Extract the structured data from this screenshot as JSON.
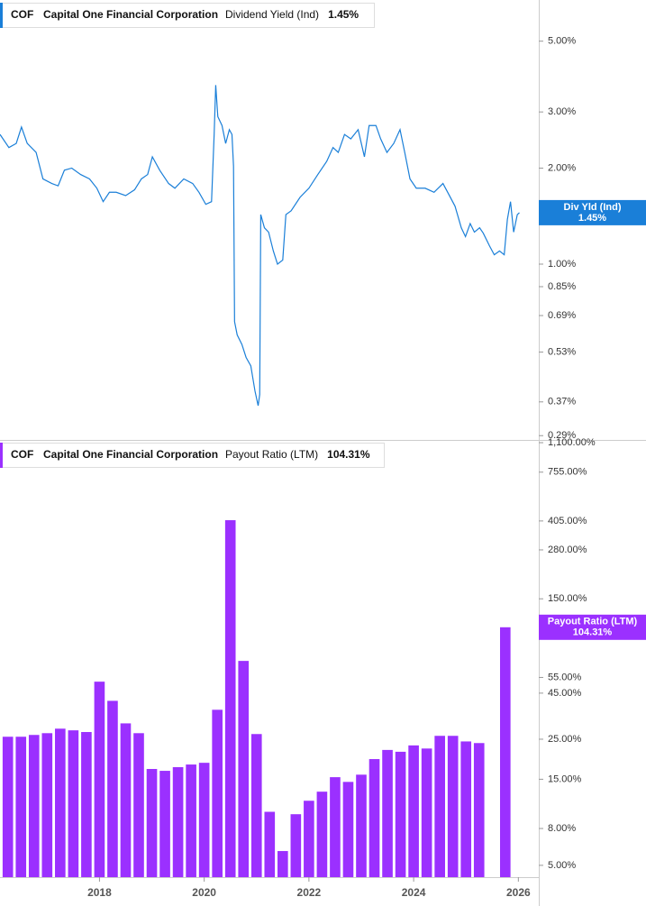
{
  "ticker": "COF",
  "company": "Capital One Financial Corporation",
  "chart_data": [
    {
      "type": "line",
      "log": true,
      "xlim": [
        2016.1,
        2026.39
      ],
      "ylim": [
        0.283,
        6.73
      ],
      "yticks": [
        {
          "value": 5,
          "label": "5.00%"
        },
        {
          "value": 3,
          "label": "3.00%"
        },
        {
          "value": 2,
          "label": "2.00%"
        },
        {
          "value": 1,
          "label": "1.00%"
        },
        {
          "value": 0.85,
          "label": "0.85%"
        },
        {
          "value": 0.69,
          "label": "0.69%"
        },
        {
          "value": 0.53,
          "label": "0.53%"
        },
        {
          "value": 0.37,
          "label": "0.37%"
        },
        {
          "value": 0.29,
          "label": "0.29%"
        }
      ],
      "x": [
        2016.1,
        2016.27,
        2016.41,
        2016.51,
        2016.62,
        2016.79,
        2016.92,
        2017.09,
        2017.21,
        2017.33,
        2017.47,
        2017.64,
        2017.81,
        2017.95,
        2018.07,
        2018.19,
        2018.32,
        2018.5,
        2018.67,
        2018.8,
        2018.92,
        2019.01,
        2019.15,
        2019.32,
        2019.44,
        2019.61,
        2019.78,
        2019.9,
        2020.03,
        2020.14,
        2020.19,
        2020.22,
        2020.26,
        2020.34,
        2020.41,
        2020.48,
        2020.53,
        2020.56,
        2020.58,
        2020.63,
        2020.72,
        2020.8,
        2020.89,
        2020.97,
        2021.03,
        2021.06,
        2021.08,
        2021.15,
        2021.23,
        2021.32,
        2021.4,
        2021.5,
        2021.56,
        2021.66,
        2021.83,
        2022.0,
        2022.17,
        2022.34,
        2022.46,
        2022.56,
        2022.68,
        2022.8,
        2022.94,
        2023.06,
        2023.15,
        2023.28,
        2023.37,
        2023.49,
        2023.62,
        2023.74,
        2023.83,
        2023.93,
        2024.05,
        2024.22,
        2024.39,
        2024.56,
        2024.65,
        2024.79,
        2024.91,
        2024.99,
        2025.08,
        2025.16,
        2025.26,
        2025.33,
        2025.45,
        2025.54,
        2025.64,
        2025.73,
        2025.79,
        2025.85,
        2025.91,
        2025.98,
        2026.02
      ],
      "series": [
        {
          "name": "Dividend Yield (Ind)",
          "color": "#1a7fd8",
          "values": [
            2.55,
            2.32,
            2.39,
            2.69,
            2.39,
            2.24,
            1.85,
            1.79,
            1.76,
            1.97,
            2.0,
            1.91,
            1.85,
            1.73,
            1.57,
            1.68,
            1.68,
            1.64,
            1.71,
            1.85,
            1.91,
            2.17,
            1.97,
            1.79,
            1.73,
            1.85,
            1.79,
            1.68,
            1.54,
            1.57,
            2.55,
            3.64,
            2.9,
            2.72,
            2.39,
            2.64,
            2.55,
            2.03,
            0.66,
            0.6,
            0.56,
            0.51,
            0.48,
            0.4,
            0.36,
            0.39,
            1.43,
            1.3,
            1.26,
            1.1,
            1.0,
            1.03,
            1.43,
            1.47,
            1.62,
            1.73,
            1.91,
            2.1,
            2.32,
            2.24,
            2.55,
            2.47,
            2.64,
            2.17,
            2.72,
            2.72,
            2.47,
            2.24,
            2.39,
            2.64,
            2.24,
            1.85,
            1.73,
            1.73,
            1.68,
            1.79,
            1.68,
            1.52,
            1.3,
            1.22,
            1.34,
            1.26,
            1.3,
            1.25,
            1.14,
            1.07,
            1.1,
            1.07,
            1.38,
            1.57,
            1.26,
            1.43,
            1.45
          ]
        }
      ],
      "last": {
        "value": 1.45,
        "label": "1.45%"
      },
      "badge_label": "Div Yld (Ind)"
    },
    {
      "type": "bar",
      "log": true,
      "xlim": [
        2016.1,
        2026.39
      ],
      "ylim": [
        4.3,
        1139
      ],
      "yticks": [
        {
          "value": 1100,
          "label": "1,100.00%"
        },
        {
          "value": 755,
          "label": "755.00%"
        },
        {
          "value": 405,
          "label": "405.00%"
        },
        {
          "value": 280,
          "label": "280.00%"
        },
        {
          "value": 150,
          "label": "150.00%"
        },
        {
          "value": 55,
          "label": "55.00%"
        },
        {
          "value": 45,
          "label": "45.00%"
        },
        {
          "value": 25,
          "label": "25.00%"
        },
        {
          "value": 15,
          "label": "15.00%"
        },
        {
          "value": 8,
          "label": "8.00%"
        },
        {
          "value": 5,
          "label": "5.00%"
        }
      ],
      "xticks": [
        2018,
        2020,
        2022,
        2024,
        2026
      ],
      "x": [
        2016.25,
        2016.5,
        2016.75,
        2017,
        2017.25,
        2017.5,
        2017.75,
        2018,
        2018.25,
        2018.5,
        2018.75,
        2019,
        2019.25,
        2019.5,
        2019.75,
        2020,
        2020.25,
        2020.5,
        2020.75,
        2021,
        2021.25,
        2021.5,
        2021.75,
        2022,
        2022.25,
        2022.5,
        2022.75,
        2023,
        2023.25,
        2023.5,
        2023.75,
        2024,
        2024.25,
        2024.5,
        2024.75,
        2025,
        2025.25,
        2025.5,
        2025.75
      ],
      "series": [
        {
          "name": "Payout Ratio (LTM)",
          "color": "#9b30ff",
          "values": [
            25.8,
            25.8,
            26.4,
            27.0,
            28.6,
            28.0,
            27.4,
            52.1,
            40.8,
            30.6,
            27.0,
            17.1,
            16.7,
            17.5,
            18.1,
            18.5,
            36.4,
            409,
            67.9,
            26.7,
            9.9,
            6.0,
            9.6,
            11.4,
            12.8,
            15.4,
            14.5,
            15.9,
            19.4,
            21.8,
            21.3,
            23.1,
            22.2,
            26.1,
            26.1,
            24.3,
            23.8,
            null,
            104.31
          ]
        }
      ],
      "last": {
        "value": 104.31,
        "label": "104.31%"
      }
    }
  ]
}
